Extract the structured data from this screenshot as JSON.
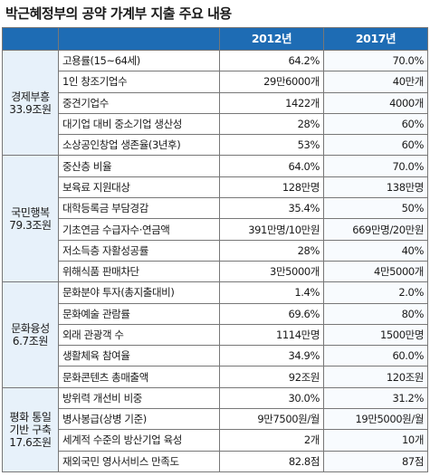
{
  "title": "박근혜정부의 공약 가계부 지출 주요 내용",
  "table": {
    "headers": [
      "",
      "",
      "2012년",
      "2017년"
    ],
    "groups": [
      {
        "name_lines": [
          "경제부흥",
          "33.9조원"
        ],
        "rows": [
          {
            "item": "고용률(15~64세)",
            "y2012": "64.2%",
            "y2017": "70.0%"
          },
          {
            "item": "1인 창조기업수",
            "y2012": "29만6000개",
            "y2017": "40만개"
          },
          {
            "item": "중견기업수",
            "y2012": "1422개",
            "y2017": "4000개"
          },
          {
            "item": "대기업 대비 중소기업 생산성",
            "y2012": "28%",
            "y2017": "60%"
          },
          {
            "item": "소상공인창업 생존율(3년후)",
            "y2012": "53%",
            "y2017": "60%"
          }
        ]
      },
      {
        "name_lines": [
          "국민행복",
          "79.3조원"
        ],
        "rows": [
          {
            "item": "중산층 비율",
            "y2012": "64.0%",
            "y2017": "70.0%"
          },
          {
            "item": "보육료 지원대상",
            "y2012": "128만명",
            "y2017": "138만명"
          },
          {
            "item": "대학등록금 부담경감",
            "y2012": "35.4%",
            "y2017": "50%"
          },
          {
            "item": "기초연금 수급자수·연금액",
            "y2012": "391만명/10만원",
            "y2017": "669만명/20만원"
          },
          {
            "item": "저소득층 자활성공률",
            "y2012": "28%",
            "y2017": "40%"
          },
          {
            "item": "위해식품 판매차단",
            "y2012": "3만5000개",
            "y2017": "4만5000개"
          }
        ]
      },
      {
        "name_lines": [
          "문화융성",
          "6.7조원"
        ],
        "rows": [
          {
            "item": "문화분야 투자(총지출대비)",
            "y2012": "1.4%",
            "y2017": "2.0%"
          },
          {
            "item": "문화예술 관람률",
            "y2012": "69.6%",
            "y2017": "80%"
          },
          {
            "item": "외래 관광객 수",
            "y2012": "1114만명",
            "y2017": "1500만명"
          },
          {
            "item": "생활체육 참여율",
            "y2012": "34.9%",
            "y2017": "60.0%"
          },
          {
            "item": "문화콘텐츠 총매출액",
            "y2012": "92조원",
            "y2017": "120조원"
          }
        ]
      },
      {
        "name_lines": [
          "평화 통일",
          "기반 구축",
          "17.6조원"
        ],
        "rows": [
          {
            "item": "방위력 개선비 비중",
            "y2012": "30.0%",
            "y2017": "31.2%"
          },
          {
            "item": "병사봉급(상병 기준)",
            "y2012": "9만7500원/월",
            "y2017": "19만5000원/월"
          },
          {
            "item": "세계적 수준의 방산기업 육성",
            "y2012": "2개",
            "y2017": "10개"
          },
          {
            "item": "재외국민 영사서비스 만족도",
            "y2012": "82.8점",
            "y2017": "87점"
          }
        ]
      }
    ]
  },
  "colors": {
    "header_bg": "#1e6cb4",
    "group_bg": "#e7f1fa",
    "border": "#777777"
  }
}
